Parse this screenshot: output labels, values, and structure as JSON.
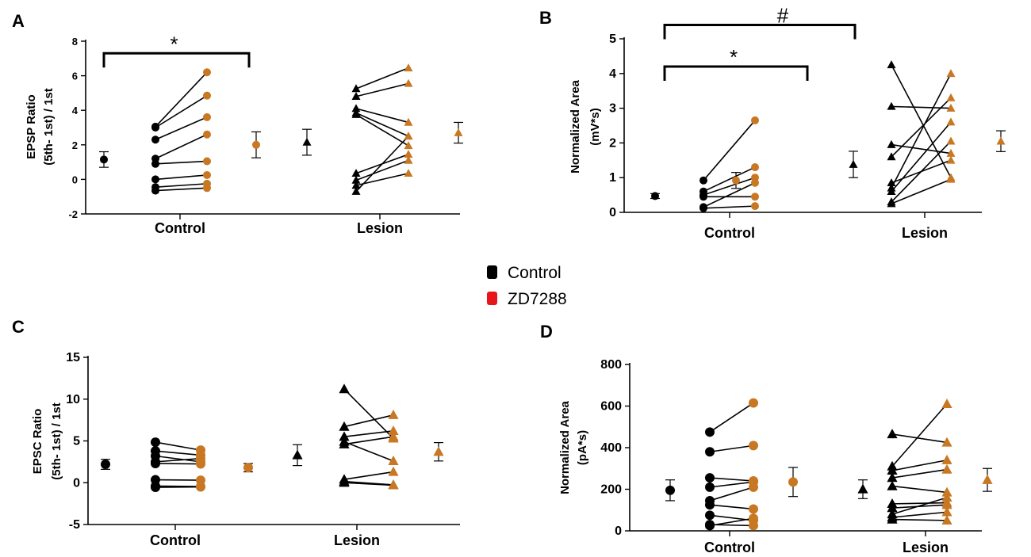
{
  "colors": {
    "control": "#000000",
    "zd": "#c87722",
    "legend_zd": "#e8161b"
  },
  "legend": [
    {
      "label": "Control",
      "color": "#000000"
    },
    {
      "label": "ZD7288",
      "color": "#e8161b"
    }
  ],
  "chart_data": [
    {
      "panel": "A",
      "type": "scatter",
      "ylabel_lines": [
        "EPSP Ratio",
        "(5th- 1st) / 1st"
      ],
      "ylim": [
        -2,
        8
      ],
      "yticks": [
        -2,
        0,
        2,
        4,
        6,
        8
      ],
      "categories": [
        "Control",
        "Lesion"
      ],
      "paired": [
        {
          "group": "Control",
          "marker": "circle",
          "pre": [
            3.05,
            3.0,
            2.3,
            1.2,
            0.9,
            0.0,
            -0.45,
            -0.65
          ],
          "post": [
            6.2,
            4.85,
            3.6,
            2.6,
            1.05,
            0.25,
            -0.25,
            -0.5
          ]
        },
        {
          "group": "Lesion",
          "marker": "triangle",
          "pre": [
            5.25,
            4.8,
            4.1,
            3.85,
            3.75,
            0.35,
            -0.05,
            -0.35,
            -0.7
          ],
          "post": [
            6.45,
            5.55,
            3.3,
            2.5,
            1.95,
            1.45,
            1.1,
            0.35,
            2.5
          ]
        }
      ],
      "summary": [
        {
          "group": "Control",
          "series": "Control",
          "marker": "circle",
          "mean": 1.15,
          "err": 0.45
        },
        {
          "group": "Control",
          "series": "ZD7288",
          "marker": "circle",
          "mean": 2.0,
          "err": 0.75
        },
        {
          "group": "Lesion",
          "series": "Control",
          "marker": "triangle",
          "mean": 2.15,
          "err": 0.75
        },
        {
          "group": "Lesion",
          "series": "ZD7288",
          "marker": "triangle",
          "mean": 2.7,
          "err": 0.6
        }
      ],
      "significance": [
        {
          "label": "*",
          "level": 7.3
        }
      ]
    },
    {
      "panel": "B",
      "type": "scatter",
      "ylabel_lines": [
        "Normalized Area",
        "(mV*s)"
      ],
      "ylim": [
        0,
        5
      ],
      "yticks": [
        0,
        1,
        2,
        3,
        4,
        5
      ],
      "categories": [
        "Control",
        "Lesion"
      ],
      "paired": [
        {
          "group": "Control",
          "marker": "circle",
          "pre": [
            0.92,
            0.6,
            0.5,
            0.45,
            0.15,
            0.12
          ],
          "post": [
            2.65,
            1.3,
            1.0,
            0.45,
            0.85,
            0.18
          ]
        },
        {
          "group": "Lesion",
          "marker": "triangle",
          "pre": [
            4.25,
            3.05,
            1.95,
            1.6,
            0.85,
            0.7,
            0.6,
            0.3,
            0.25
          ],
          "post": [
            1.0,
            3.0,
            1.7,
            3.3,
            1.5,
            4.0,
            2.6,
            2.05,
            0.95
          ]
        }
      ],
      "summary": [
        {
          "group": "Control",
          "series": "Control",
          "marker": "circle",
          "mean": 0.47,
          "err": 0.07
        },
        {
          "group": "Control",
          "series": "ZD7288",
          "marker": "circle",
          "mean": 0.92,
          "err": 0.23
        },
        {
          "group": "Lesion",
          "series": "Control",
          "marker": "triangle",
          "mean": 1.38,
          "err": 0.38
        },
        {
          "group": "Lesion",
          "series": "ZD7288",
          "marker": "triangle",
          "mean": 2.05,
          "err": 0.3
        }
      ],
      "significance": [
        {
          "label": "*",
          "level": 4.2
        },
        {
          "label": "#",
          "level": 5.4
        }
      ]
    },
    {
      "panel": "C",
      "type": "scatter",
      "ylabel_lines": [
        "EPSC Ratio",
        "(5th- 1st) / 1st"
      ],
      "ylim": [
        -5,
        15
      ],
      "yticks": [
        -5,
        0,
        5,
        10,
        15
      ],
      "categories": [
        "Control",
        "Lesion"
      ],
      "paired": [
        {
          "group": "Control",
          "marker": "circle",
          "pre": [
            4.85,
            3.8,
            3.2,
            2.5,
            2.3,
            0.35,
            -0.4,
            -0.55
          ],
          "post": [
            3.9,
            3.3,
            2.5,
            2.9,
            2.25,
            0.3,
            -0.45,
            -0.5
          ]
        },
        {
          "group": "Lesion",
          "marker": "triangle",
          "pre": [
            11.2,
            6.7,
            5.5,
            4.9,
            4.6,
            0.4,
            0.15,
            0.0
          ],
          "post": [
            5.3,
            8.1,
            6.2,
            2.6,
            5.5,
            1.3,
            -0.25,
            -0.3
          ]
        }
      ],
      "summary": [
        {
          "group": "Control",
          "series": "Control",
          "marker": "circle",
          "mean": 2.2,
          "err": 0.6
        },
        {
          "group": "Control",
          "series": "ZD7288",
          "marker": "circle",
          "mean": 1.8,
          "err": 0.5
        },
        {
          "group": "Lesion",
          "series": "Control",
          "marker": "triangle",
          "mean": 3.3,
          "err": 1.25
        },
        {
          "group": "Lesion",
          "series": "ZD7288",
          "marker": "triangle",
          "mean": 3.7,
          "err": 1.1
        }
      ],
      "significance": []
    },
    {
      "panel": "D",
      "type": "scatter",
      "ylabel_lines": [
        "Normalized Area",
        "(pA*s)"
      ],
      "ylim": [
        0,
        800
      ],
      "yticks": [
        0,
        200,
        400,
        600,
        800
      ],
      "categories": [
        "Control",
        "Lesion"
      ],
      "paired": [
        {
          "group": "Control",
          "marker": "circle",
          "pre": [
            475,
            380,
            255,
            210,
            145,
            125,
            75,
            30,
            25
          ],
          "post": [
            615,
            410,
            240,
            235,
            210,
            105,
            50,
            25,
            60
          ]
        },
        {
          "group": "Lesion",
          "marker": "triangle",
          "pre": [
            465,
            310,
            290,
            255,
            215,
            130,
            110,
            80,
            65,
            55
          ],
          "post": [
            425,
            610,
            340,
            295,
            185,
            135,
            125,
            160,
            90,
            50
          ]
        }
      ],
      "summary": [
        {
          "group": "Control",
          "series": "Control",
          "marker": "circle",
          "mean": 195,
          "err": 50
        },
        {
          "group": "Control",
          "series": "ZD7288",
          "marker": "circle",
          "mean": 235,
          "err": 70
        },
        {
          "group": "Lesion",
          "series": "Control",
          "marker": "triangle",
          "mean": 200,
          "err": 45
        },
        {
          "group": "Lesion",
          "series": "ZD7288",
          "marker": "triangle",
          "mean": 245,
          "err": 55
        }
      ],
      "significance": []
    }
  ]
}
